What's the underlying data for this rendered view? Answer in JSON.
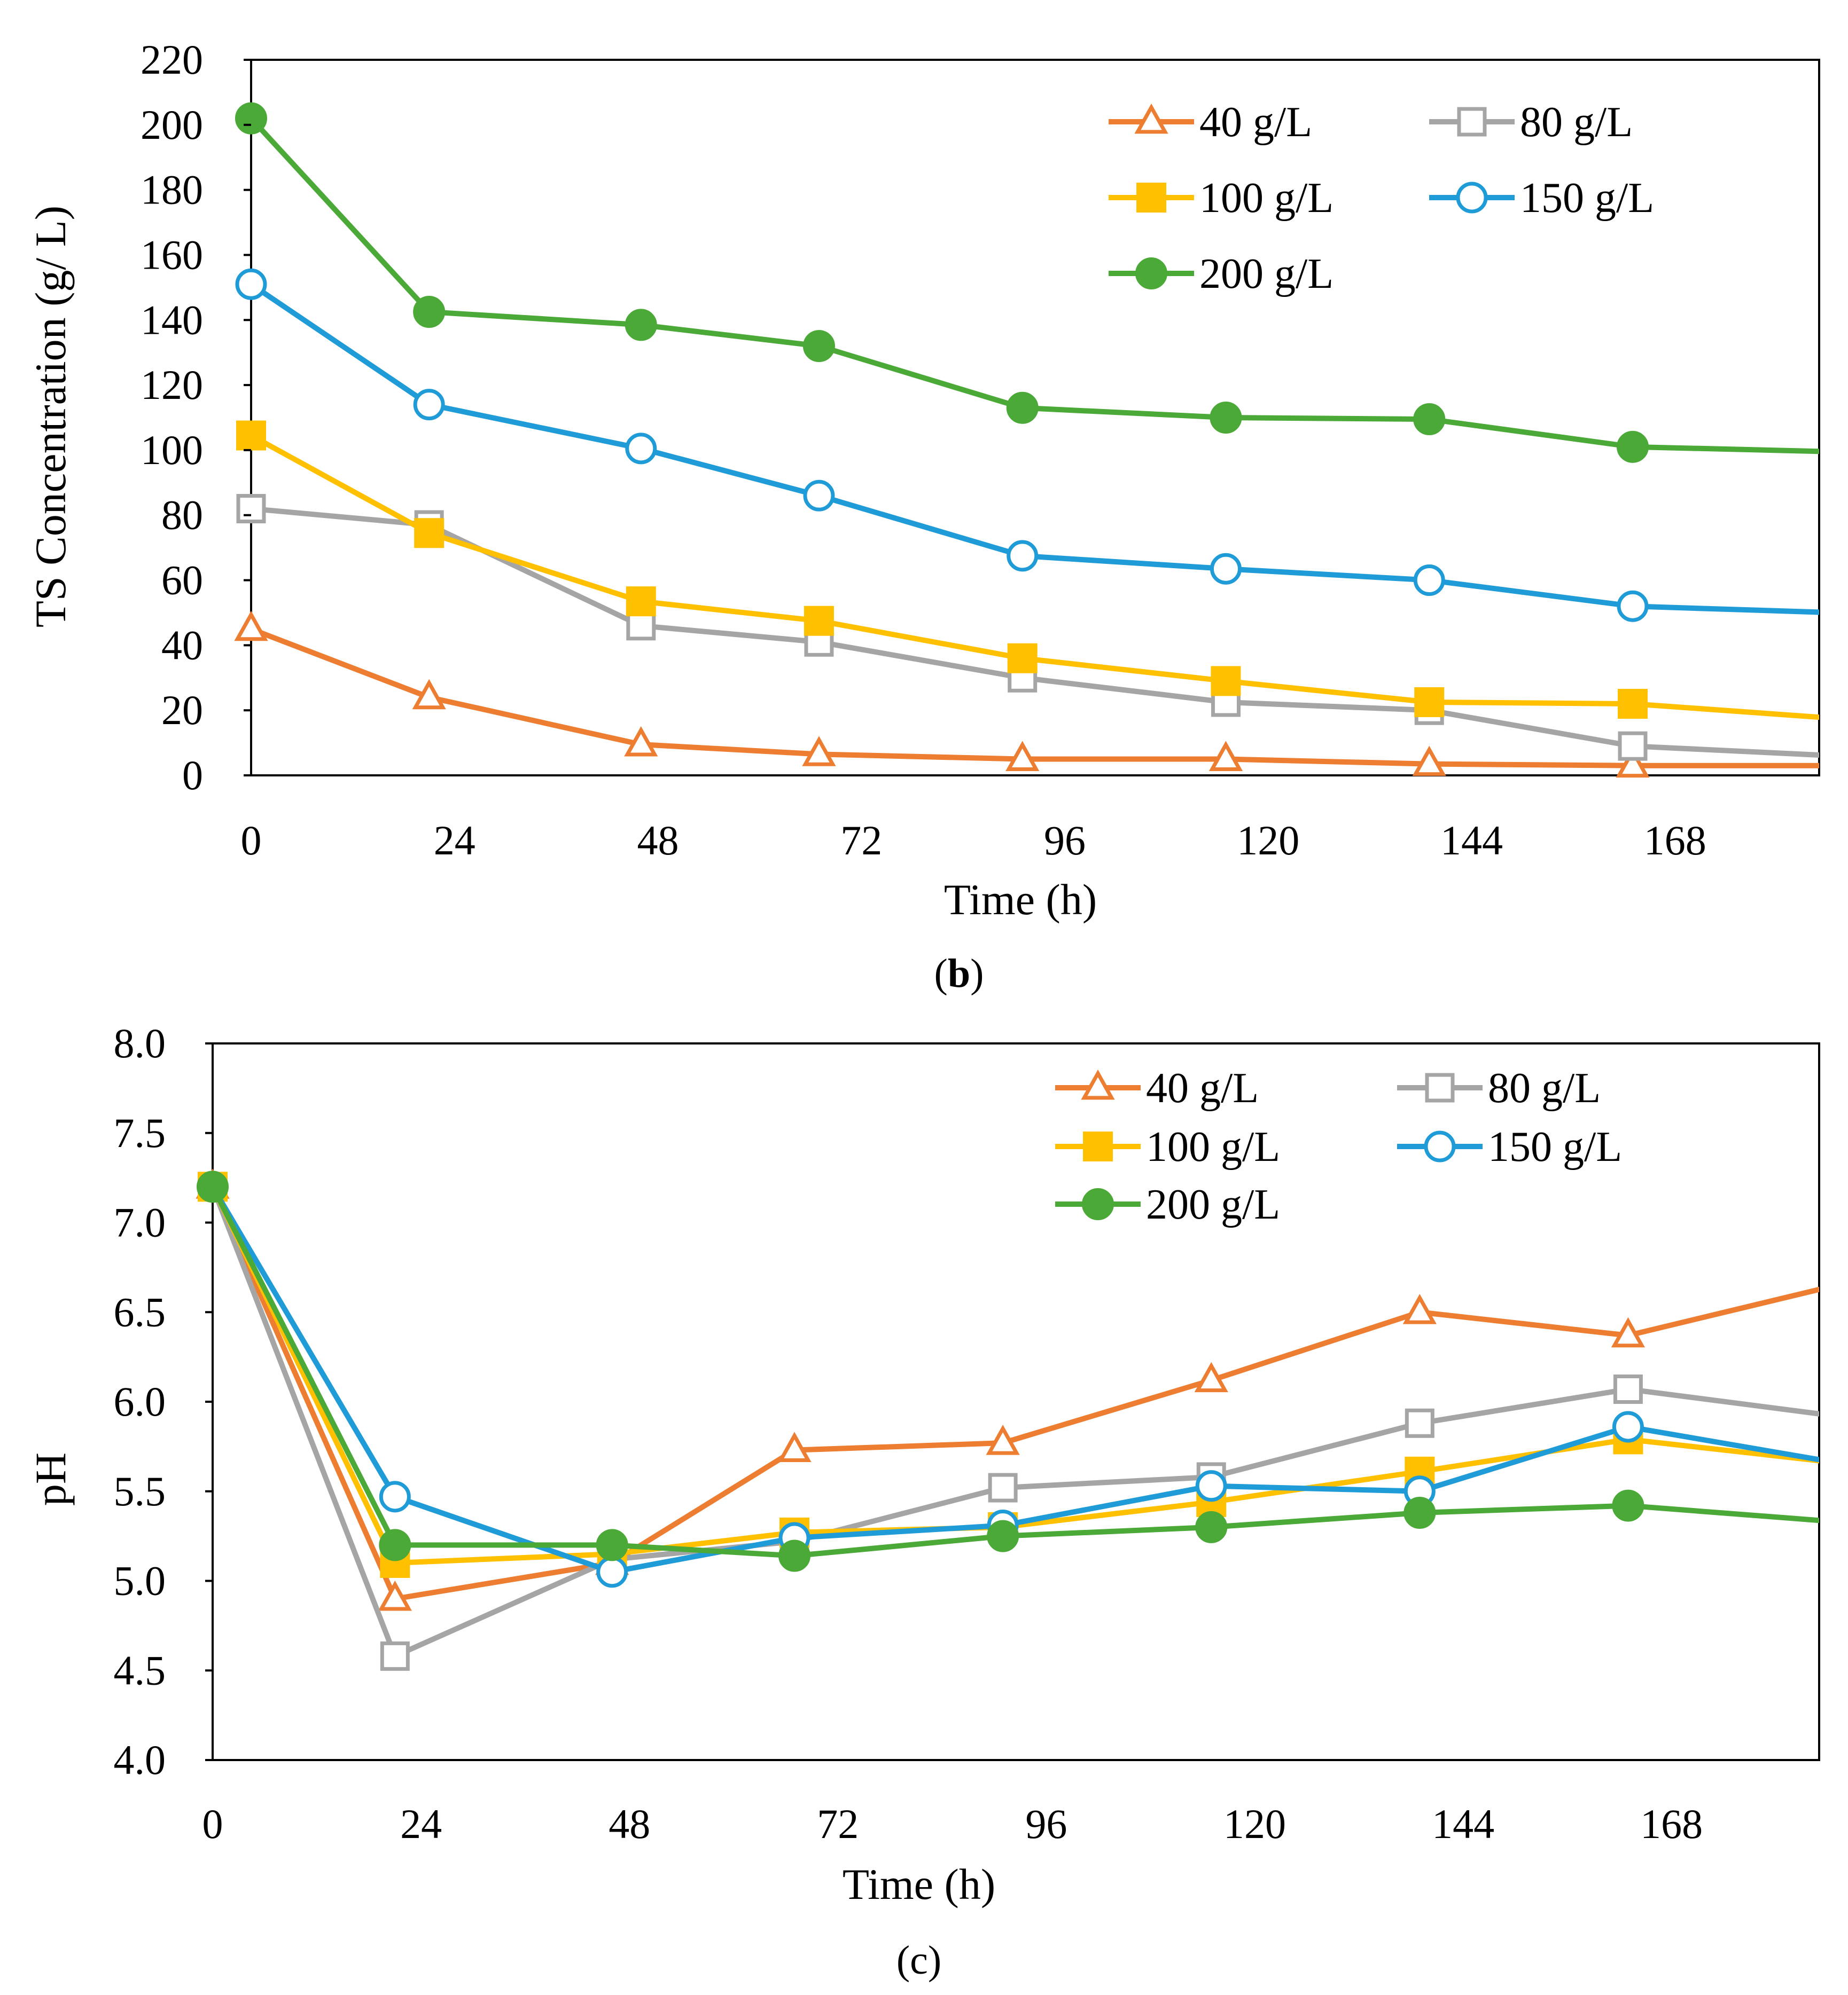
{
  "chart_data": [
    {
      "type": "line",
      "panel_label": "b",
      "title": "",
      "xlabel": "Time (h)",
      "ylabel": "TS Concentration (g/ L)",
      "xlim": [
        0,
        185
      ],
      "ylim": [
        0,
        220
      ],
      "x_ticks": [
        "0",
        "24",
        "48",
        "72",
        "96",
        "120",
        "144",
        "168"
      ],
      "x_tick_values": [
        0,
        24,
        48,
        72,
        96,
        120,
        144,
        168
      ],
      "y_ticks": [
        "0",
        "20",
        "40",
        "60",
        "80",
        "100",
        "120",
        "140",
        "160",
        "180",
        "200",
        "220"
      ],
      "y_tick_values": [
        0,
        20,
        40,
        60,
        80,
        100,
        120,
        140,
        160,
        180,
        200,
        220
      ],
      "grid": false,
      "legend_position": "top-right",
      "x": [
        0,
        21,
        46,
        67,
        91,
        115,
        139,
        163,
        187
      ],
      "series": [
        {
          "name": "40 g/L",
          "color": "#ED7D31",
          "marker": "triangle-open",
          "values": [
            45,
            24,
            9.5,
            6.5,
            5,
            5,
            3.5,
            3,
            3
          ]
        },
        {
          "name": "80 g/L",
          "color": "#A5A5A5",
          "marker": "square-open",
          "values": [
            82,
            77,
            46,
            41,
            30,
            22.5,
            20,
            9,
            6
          ]
        },
        {
          "name": "100 g/L",
          "color": "#FFC000",
          "marker": "square-filled",
          "values": [
            104.5,
            74.5,
            53.5,
            47.5,
            36,
            29,
            22.5,
            22,
            17.5
          ]
        },
        {
          "name": "150 g/L",
          "color": "#1F9BD7",
          "marker": "circle-open",
          "values": [
            151,
            114,
            100.5,
            86,
            67.5,
            63.5,
            60,
            52,
            50
          ]
        },
        {
          "name": "200 g/L",
          "color": "#4AA937",
          "marker": "circle-filled",
          "values": [
            202,
            142.5,
            138.5,
            132,
            113,
            110,
            109.5,
            101,
            99.5
          ]
        }
      ]
    },
    {
      "type": "line",
      "panel_label": "c",
      "title": "",
      "xlabel": "Time (h)",
      "ylabel": "pH",
      "xlim": [
        0,
        185
      ],
      "ylim": [
        4.0,
        8.0
      ],
      "x_ticks": [
        "0",
        "24",
        "48",
        "72",
        "96",
        "120",
        "144",
        "168"
      ],
      "x_tick_values": [
        0,
        24,
        48,
        72,
        96,
        120,
        144,
        168
      ],
      "y_ticks": [
        "4.0",
        "4.5",
        "5.0",
        "5.5",
        "6.0",
        "6.5",
        "7.0",
        "7.5",
        "8.0"
      ],
      "y_tick_values": [
        4.0,
        4.5,
        5.0,
        5.5,
        6.0,
        6.5,
        7.0,
        7.5,
        8.0
      ],
      "grid": false,
      "legend_position": "top-right",
      "x": [
        0,
        21,
        46,
        67,
        91,
        115,
        139,
        163,
        187
      ],
      "series": [
        {
          "name": "40 g/L",
          "color": "#ED7D31",
          "marker": "triangle-open",
          "values": [
            7.2,
            4.9,
            5.1,
            5.73,
            5.77,
            6.12,
            6.5,
            6.37,
            6.65
          ]
        },
        {
          "name": "80 g/L",
          "color": "#A5A5A5",
          "marker": "square-open",
          "values": [
            7.2,
            4.58,
            5.12,
            5.22,
            5.52,
            5.58,
            5.88,
            6.07,
            5.92
          ]
        },
        {
          "name": "100 g/L",
          "color": "#FFC000",
          "marker": "square-filled",
          "values": [
            7.2,
            5.1,
            5.15,
            5.27,
            5.3,
            5.44,
            5.61,
            5.79,
            5.66
          ]
        },
        {
          "name": "150 g/L",
          "color": "#1F9BD7",
          "marker": "circle-open",
          "values": [
            7.2,
            5.47,
            5.05,
            5.24,
            5.31,
            5.53,
            5.5,
            5.86,
            5.66
          ]
        },
        {
          "name": "200 g/L",
          "color": "#4AA937",
          "marker": "circle-filled",
          "values": [
            7.2,
            5.2,
            5.2,
            5.14,
            5.25,
            5.3,
            5.38,
            5.42,
            5.33
          ]
        }
      ]
    }
  ]
}
